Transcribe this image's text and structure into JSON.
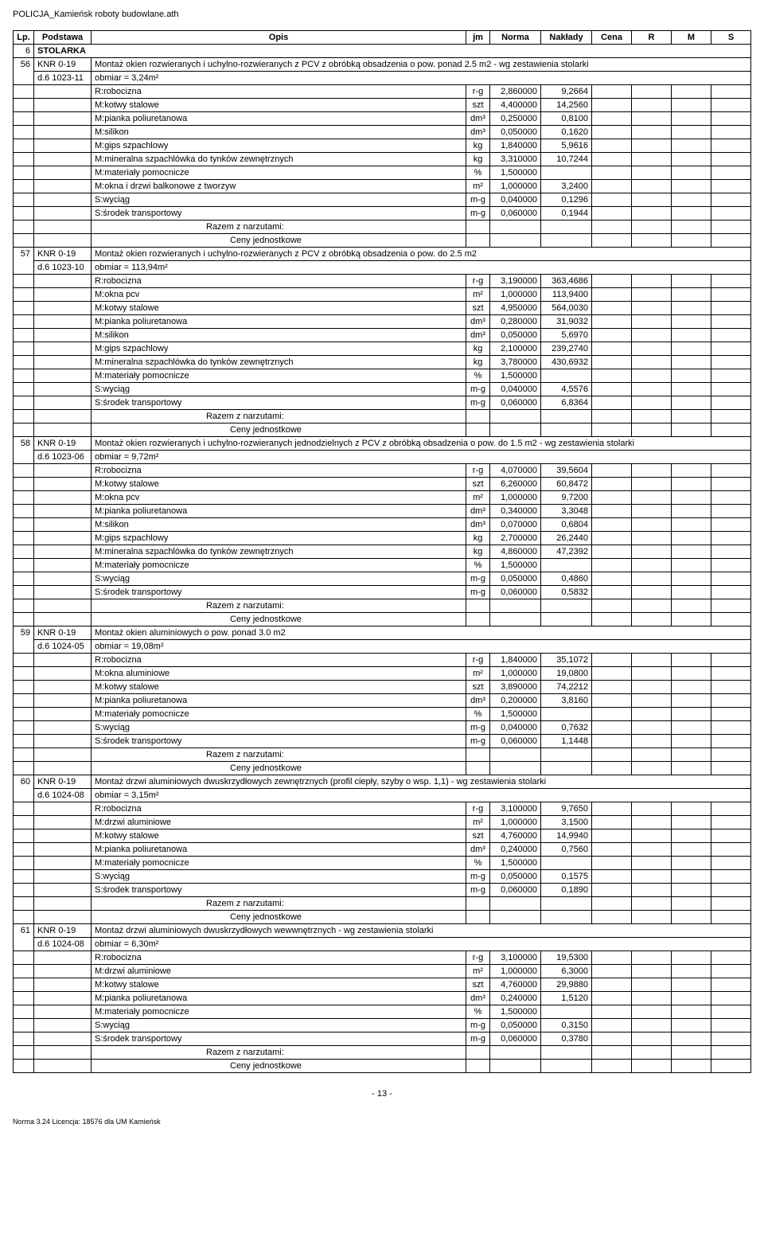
{
  "doc_title": "POLICJA_Kamieńsk roboty budowlane.ath",
  "header": {
    "lp": "Lp.",
    "podstawa": "Podstawa",
    "opis": "Opis",
    "jm": "jm",
    "norma": "Norma",
    "naklady": "Nakłady",
    "cena": "Cena",
    "r": "R",
    "m": "M",
    "s": "S"
  },
  "section": {
    "num": "6",
    "title": "STOLARKA"
  },
  "razem": "Razem z narzutami:",
  "ceny": "Ceny jednostkowe",
  "page_num": "- 13 -",
  "footer": "Norma 3.24 Licencja: 18576 dla UM Kamieńsk",
  "items": [
    {
      "lp": "56",
      "pod1": "KNR 0-19",
      "pod2": "d.6",
      "pod3": "1023-11",
      "opis": "Montaż okien rozwieranych i uchylno-rozwieranych z PCV z obróbką obsadzenia o pow. ponad 2.5 m2 - wg zestawienia stolarki",
      "obmiar": "obmiar = 3,24m²",
      "rows": [
        {
          "n": "R:robocizna",
          "jm": "r-g",
          "norma": "2,860000",
          "nak": "9,2664"
        },
        {
          "n": "M:kotwy stalowe",
          "jm": "szt",
          "norma": "4,400000",
          "nak": "14,2560"
        },
        {
          "n": "M:pianka poliuretanowa",
          "jm": "dm³",
          "norma": "0,250000",
          "nak": "0,8100"
        },
        {
          "n": "M:silikon",
          "jm": "dm³",
          "norma": "0,050000",
          "nak": "0,1620"
        },
        {
          "n": "M:gips szpachlowy",
          "jm": "kg",
          "norma": "1,840000",
          "nak": "5,9616"
        },
        {
          "n": "M:mineralna szpachlówka do tynków zewnętrznych",
          "jm": "kg",
          "norma": "3,310000",
          "nak": "10,7244"
        },
        {
          "n": "M:materiały pomocnicze",
          "jm": "%",
          "norma": "1,500000",
          "nak": ""
        },
        {
          "n": "M:okna i drzwi balkonowe z tworzyw",
          "jm": "m²",
          "norma": "1,000000",
          "nak": "3,2400"
        },
        {
          "n": "S:wyciąg",
          "jm": "m-g",
          "norma": "0,040000",
          "nak": "0,1296"
        },
        {
          "n": "S:środek transportowy",
          "jm": "m-g",
          "norma": "0,060000",
          "nak": "0,1944"
        }
      ]
    },
    {
      "lp": "57",
      "pod1": "KNR 0-19",
      "pod2": "d.6",
      "pod3": "1023-10",
      "opis": "Montaż okien rozwieranych i uchylno-rozwieranych z PCV z obróbką obsadzenia o pow. do 2.5 m2",
      "obmiar": "obmiar = 113,94m²",
      "rows": [
        {
          "n": "R:robocizna",
          "jm": "r-g",
          "norma": "3,190000",
          "nak": "363,4686"
        },
        {
          "n": "M:okna pcv",
          "jm": "m²",
          "norma": "1,000000",
          "nak": "113,9400"
        },
        {
          "n": "M:kotwy stalowe",
          "jm": "szt",
          "norma": "4,950000",
          "nak": "564,0030"
        },
        {
          "n": "M:pianka poliuretanowa",
          "jm": "dm³",
          "norma": "0,280000",
          "nak": "31,9032"
        },
        {
          "n": "M:silikon",
          "jm": "dm³",
          "norma": "0,050000",
          "nak": "5,6970"
        },
        {
          "n": "M:gips szpachlowy",
          "jm": "kg",
          "norma": "2,100000",
          "nak": "239,2740"
        },
        {
          "n": "M:mineralna szpachlówka do tynków zewnętrznych",
          "jm": "kg",
          "norma": "3,780000",
          "nak": "430,6932"
        },
        {
          "n": "M:materiały pomocnicze",
          "jm": "%",
          "norma": "1,500000",
          "nak": ""
        },
        {
          "n": "S:wyciąg",
          "jm": "m-g",
          "norma": "0,040000",
          "nak": "4,5576"
        },
        {
          "n": "S:środek transportowy",
          "jm": "m-g",
          "norma": "0,060000",
          "nak": "6,8364"
        }
      ]
    },
    {
      "lp": "58",
      "pod1": "KNR 0-19",
      "pod2": "d.6",
      "pod3": "1023-06",
      "opis": "Montaż okien rozwieranych i uchylno-rozwieranych jednodzielnych z PCV z obróbką obsadzenia o pow. do 1.5 m2 - wg zestawienia stolarki",
      "obmiar": "obmiar = 9,72m²",
      "rows": [
        {
          "n": "R:robocizna",
          "jm": "r-g",
          "norma": "4,070000",
          "nak": "39,5604"
        },
        {
          "n": "M:kotwy stalowe",
          "jm": "szt",
          "norma": "6,260000",
          "nak": "60,8472"
        },
        {
          "n": "M:okna pcv",
          "jm": "m²",
          "norma": "1,000000",
          "nak": "9,7200"
        },
        {
          "n": "M:pianka poliuretanowa",
          "jm": "dm³",
          "norma": "0,340000",
          "nak": "3,3048"
        },
        {
          "n": "M:silikon",
          "jm": "dm³",
          "norma": "0,070000",
          "nak": "0,6804"
        },
        {
          "n": "M:gips szpachlowy",
          "jm": "kg",
          "norma": "2,700000",
          "nak": "26,2440"
        },
        {
          "n": "M:mineralna szpachlówka do tynków zewnętrznych",
          "jm": "kg",
          "norma": "4,860000",
          "nak": "47,2392"
        },
        {
          "n": "M:materiały pomocnicze",
          "jm": "%",
          "norma": "1,500000",
          "nak": ""
        },
        {
          "n": "S:wyciąg",
          "jm": "m-g",
          "norma": "0,050000",
          "nak": "0,4860"
        },
        {
          "n": "S:środek transportowy",
          "jm": "m-g",
          "norma": "0,060000",
          "nak": "0,5832"
        }
      ]
    },
    {
      "lp": "59",
      "pod1": "KNR 0-19",
      "pod2": "d.6",
      "pod3": "1024-05",
      "opis": "Montaż okien aluminiowych o pow. ponad 3.0 m2",
      "obmiar": "obmiar = 19,08m²",
      "rows": [
        {
          "n": "R:robocizna",
          "jm": "r-g",
          "norma": "1,840000",
          "nak": "35,1072"
        },
        {
          "n": "M:okna aluminiowe",
          "jm": "m²",
          "norma": "1,000000",
          "nak": "19,0800"
        },
        {
          "n": "M:kotwy stalowe",
          "jm": "szt",
          "norma": "3,890000",
          "nak": "74,2212"
        },
        {
          "n": "M:pianka poliuretanowa",
          "jm": "dm³",
          "norma": "0,200000",
          "nak": "3,8160"
        },
        {
          "n": "M:materiały pomocnicze",
          "jm": "%",
          "norma": "1,500000",
          "nak": ""
        },
        {
          "n": "S:wyciąg",
          "jm": "m-g",
          "norma": "0,040000",
          "nak": "0,7632"
        },
        {
          "n": "S:środek transportowy",
          "jm": "m-g",
          "norma": "0,060000",
          "nak": "1,1448"
        }
      ]
    },
    {
      "lp": "60",
      "pod1": "KNR 0-19",
      "pod2": "d.6",
      "pod3": "1024-08",
      "opis": "Montaż drzwi aluminiowych dwuskrzydłowych zewnętrznych (profil ciepły, szyby o wsp. 1,1) - wg zestawienia stolarki",
      "obmiar": "obmiar = 3,15m²",
      "rows": [
        {
          "n": "R:robocizna",
          "jm": "r-g",
          "norma": "3,100000",
          "nak": "9,7650"
        },
        {
          "n": "M:drzwi aluminiowe",
          "jm": "m²",
          "norma": "1,000000",
          "nak": "3,1500"
        },
        {
          "n": "M:kotwy stalowe",
          "jm": "szt",
          "norma": "4,760000",
          "nak": "14,9940"
        },
        {
          "n": "M:pianka poliuretanowa",
          "jm": "dm³",
          "norma": "0,240000",
          "nak": "0,7560"
        },
        {
          "n": "M:materiały pomocnicze",
          "jm": "%",
          "norma": "1,500000",
          "nak": ""
        },
        {
          "n": "S:wyciąg",
          "jm": "m-g",
          "norma": "0,050000",
          "nak": "0,1575"
        },
        {
          "n": "S:środek transportowy",
          "jm": "m-g",
          "norma": "0,060000",
          "nak": "0,1890"
        }
      ]
    },
    {
      "lp": "61",
      "pod1": "KNR 0-19",
      "pod2": "d.6",
      "pod3": "1024-08",
      "opis": "Montaż drzwi aluminiowych dwuskrzydłowych wewwnętrznych - wg zestawienia stolarki",
      "obmiar": "obmiar = 6,30m²",
      "rows": [
        {
          "n": "R:robocizna",
          "jm": "r-g",
          "norma": "3,100000",
          "nak": "19,5300"
        },
        {
          "n": "M:drzwi aluminiowe",
          "jm": "m²",
          "norma": "1,000000",
          "nak": "6,3000"
        },
        {
          "n": "M:kotwy stalowe",
          "jm": "szt",
          "norma": "4,760000",
          "nak": "29,9880"
        },
        {
          "n": "M:pianka poliuretanowa",
          "jm": "dm³",
          "norma": "0,240000",
          "nak": "1,5120"
        },
        {
          "n": "M:materiały pomocnicze",
          "jm": "%",
          "norma": "1,500000",
          "nak": ""
        },
        {
          "n": "S:wyciąg",
          "jm": "m-g",
          "norma": "0,050000",
          "nak": "0,3150"
        },
        {
          "n": "S:środek transportowy",
          "jm": "m-g",
          "norma": "0,060000",
          "nak": "0,3780"
        }
      ]
    }
  ]
}
